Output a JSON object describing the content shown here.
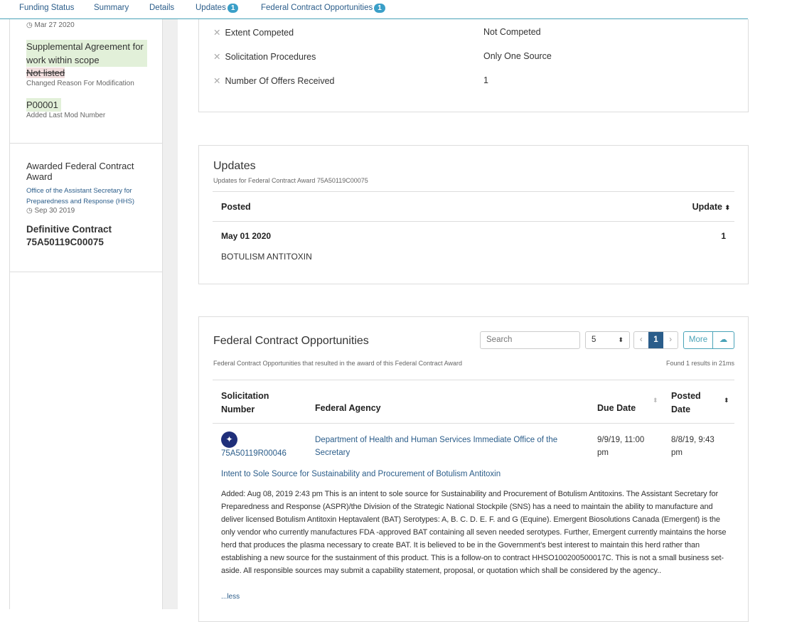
{
  "tabs": [
    {
      "label": "Funding Status"
    },
    {
      "label": "Summary"
    },
    {
      "label": "Details"
    },
    {
      "label": "Updates",
      "badge": "1"
    },
    {
      "label": "Federal Contract Opportunities",
      "badge": "1"
    }
  ],
  "left": {
    "modification": {
      "date": "Mar 27 2020",
      "new_reason": "Supplemental Agreement for work within scope",
      "old_reason": "Not listed",
      "reason_label": "Changed Reason For Modification",
      "mod_number": "P00001",
      "mod_label": "Added Last Mod Number"
    },
    "award": {
      "title": "Awarded Federal Contract Award",
      "agency": "Office of the Assistant Secretary for Preparedness and Response (HHS)",
      "date": "Sep 30 2019",
      "type": "Definitive Contract",
      "number": "75A50119C00075"
    }
  },
  "competition": {
    "rows": [
      {
        "label": "Extent Competed",
        "value": "Not Competed"
      },
      {
        "label": "Solicitation Procedures",
        "value": "Only One Source"
      },
      {
        "label": "Number Of Offers Received",
        "value": "1"
      }
    ]
  },
  "updates": {
    "title": "Updates",
    "subtitle": "Updates for Federal Contract Award 75A50119C00075",
    "col_posted": "Posted",
    "col_update": "Update",
    "row": {
      "date": "May 01 2020",
      "count": "1",
      "text": "BOTULISM ANTITOXIN"
    }
  },
  "opportunities": {
    "title": "Federal Contract Opportunities",
    "subtitle": "Federal Contract Opportunities that resulted in the award of this Federal Contract Award",
    "search_placeholder": "Search",
    "page_size": "5",
    "page": "1",
    "more_label": "More",
    "found": "Found 1 results in 21ms",
    "cols": {
      "solicitation": "Solicitation Number",
      "agency": "Federal Agency",
      "due": "Due Date",
      "posted": "Posted Date"
    },
    "row": {
      "number": "75A50119R00046",
      "agency": "Department of Health and Human Services Immediate Office of the Secretary",
      "due": "9/9/19, 11:00 pm",
      "posted": "8/8/19, 9:43 pm",
      "title": "Intent to Sole Source for Sustainability and Procurement of Botulism Antitoxin",
      "description": "Added: Aug 08, 2019 2:43 pm This is an intent to sole source for Sustainability and Procurement of Botulism Antitoxins. The Assistant Secretary for Preparedness and Response (ASPR)/the Division of the Strategic National Stockpile (SNS) has a need to maintain the ability to manufacture and deliver licensed Botulism Antitoxin Heptavalent (BAT) Serotypes: A, B. C. D. E. F. and G (Equine). Emergent Biosolutions Canada (Emergent) is the only vendor who currently manufactures FDA -approved BAT containing all seven needed serotypes. Further, Emergent currently maintains the horse herd that produces the plasma necessary to create BAT. It is believed to be in the Government's best interest to maintain this herd rather than establishing a new source for the sustainment of this product. This is a follow-on to contract HHSO100200500017C. This is not a small business set-aside. All responsible sources may submit a capability statement, proposal, or quotation which shall be considered by the agency..",
      "less": "...less"
    }
  },
  "colors": {
    "accent": "#2b5d8a",
    "badge": "#3a9fc8",
    "added": "#e2f0d9",
    "removed": "#f2dede"
  }
}
